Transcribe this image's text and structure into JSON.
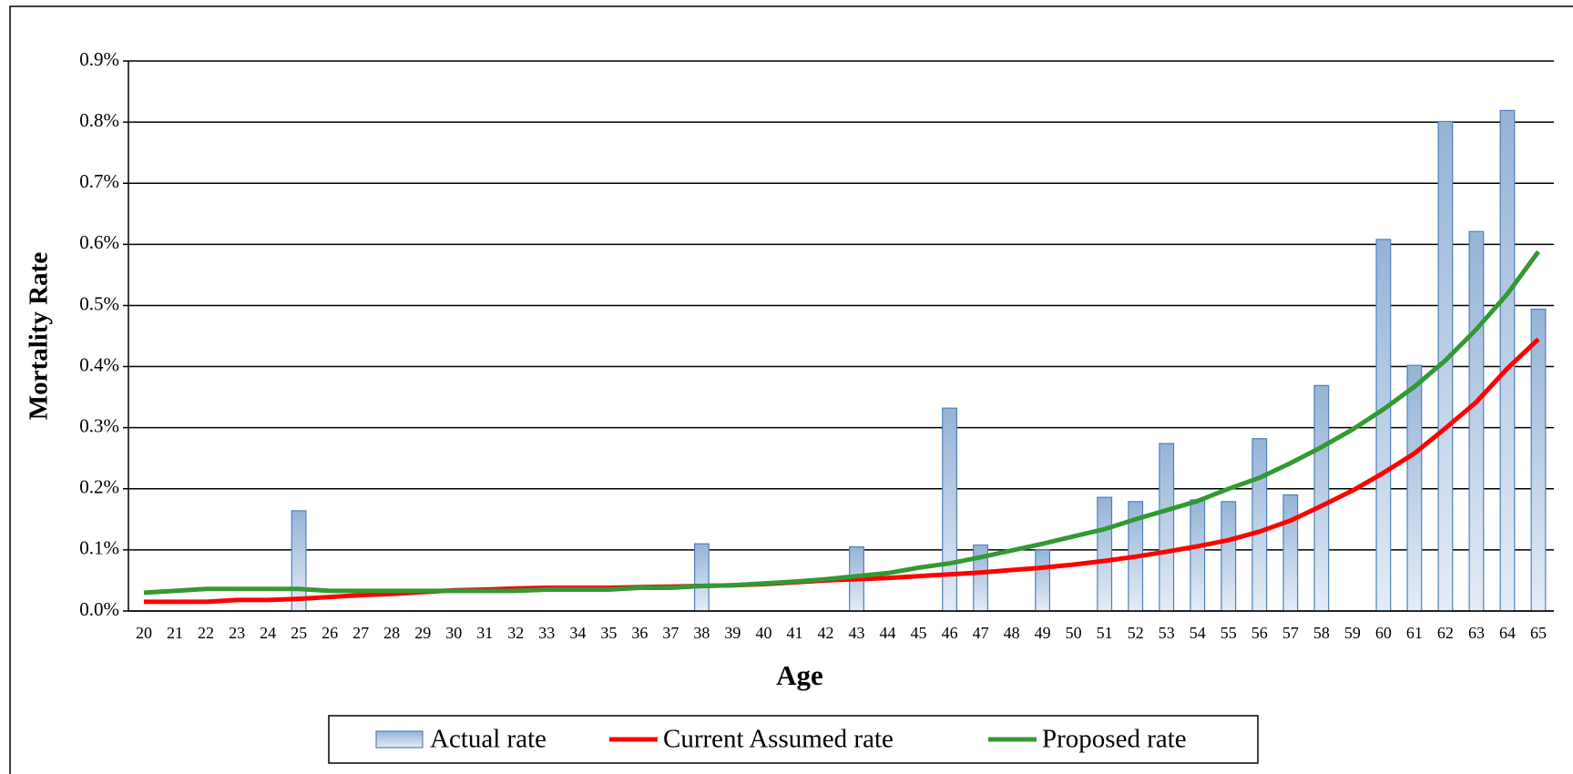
{
  "chart_data": {
    "type": "bar_line",
    "x_label": "Age",
    "y_label": "Mortality Rate",
    "categories": [
      "20",
      "21",
      "22",
      "23",
      "24",
      "25",
      "26",
      "27",
      "28",
      "29",
      "30",
      "31",
      "32",
      "33",
      "34",
      "35",
      "36",
      "37",
      "38",
      "39",
      "40",
      "41",
      "42",
      "43",
      "44",
      "45",
      "46",
      "47",
      "48",
      "49",
      "50",
      "51",
      "52",
      "53",
      "54",
      "55",
      "56",
      "57",
      "58",
      "59",
      "60",
      "61",
      "62",
      "63",
      "64",
      "65"
    ],
    "series": [
      {
        "name": "Actual rate",
        "type": "bar",
        "color": "#4f81bd",
        "values": [
          0,
          0,
          0,
          0,
          0,
          0.164,
          0,
          0,
          0,
          0,
          0,
          0,
          0,
          0,
          0,
          0,
          0,
          0,
          0.11,
          0,
          0,
          0,
          0,
          0.105,
          0,
          0,
          0.332,
          0.108,
          0,
          0.1,
          0,
          0.186,
          0.179,
          0.274,
          0.182,
          0.179,
          0.282,
          0.19,
          0.369,
          0,
          0.608,
          0.402,
          0.801,
          0.621,
          0.819,
          0.494
        ]
      },
      {
        "name": "Current Assumed rate",
        "type": "line",
        "color": "#ff0000",
        "values": [
          0.015,
          0.015,
          0.015,
          0.018,
          0.018,
          0.02,
          0.023,
          0.026,
          0.028,
          0.031,
          0.034,
          0.035,
          0.037,
          0.038,
          0.038,
          0.038,
          0.039,
          0.04,
          0.041,
          0.042,
          0.044,
          0.047,
          0.05,
          0.052,
          0.054,
          0.057,
          0.06,
          0.063,
          0.067,
          0.071,
          0.076,
          0.082,
          0.089,
          0.097,
          0.106,
          0.116,
          0.13,
          0.148,
          0.172,
          0.197,
          0.226,
          0.258,
          0.299,
          0.342,
          0.397,
          0.445
        ]
      },
      {
        "name": "Proposed rate",
        "type": "line",
        "color": "#339933",
        "values": [
          0.03,
          0.033,
          0.036,
          0.036,
          0.036,
          0.036,
          0.033,
          0.033,
          0.033,
          0.033,
          0.033,
          0.033,
          0.033,
          0.035,
          0.035,
          0.035,
          0.038,
          0.038,
          0.041,
          0.042,
          0.045,
          0.048,
          0.052,
          0.057,
          0.062,
          0.071,
          0.078,
          0.088,
          0.099,
          0.11,
          0.122,
          0.134,
          0.15,
          0.165,
          0.18,
          0.2,
          0.218,
          0.242,
          0.268,
          0.297,
          0.33,
          0.367,
          0.41,
          0.461,
          0.519,
          0.588
        ]
      }
    ],
    "ylim": [
      0,
      0.9
    ],
    "yticks": [
      {
        "value": 0,
        "label": "0.0%"
      },
      {
        "value": 0.1,
        "label": "0.1%"
      },
      {
        "value": 0.2,
        "label": "0.2%"
      },
      {
        "value": 0.3,
        "label": "0.3%"
      },
      {
        "value": 0.4,
        "label": "0.4%"
      },
      {
        "value": 0.5,
        "label": "0.5%"
      },
      {
        "value": 0.6,
        "label": "0.6%"
      },
      {
        "value": 0.7,
        "label": "0.7%"
      },
      {
        "value": 0.8,
        "label": "0.8%"
      },
      {
        "value": 0.9,
        "label": "0.9%"
      }
    ],
    "grid": true,
    "legend": "bottom"
  }
}
